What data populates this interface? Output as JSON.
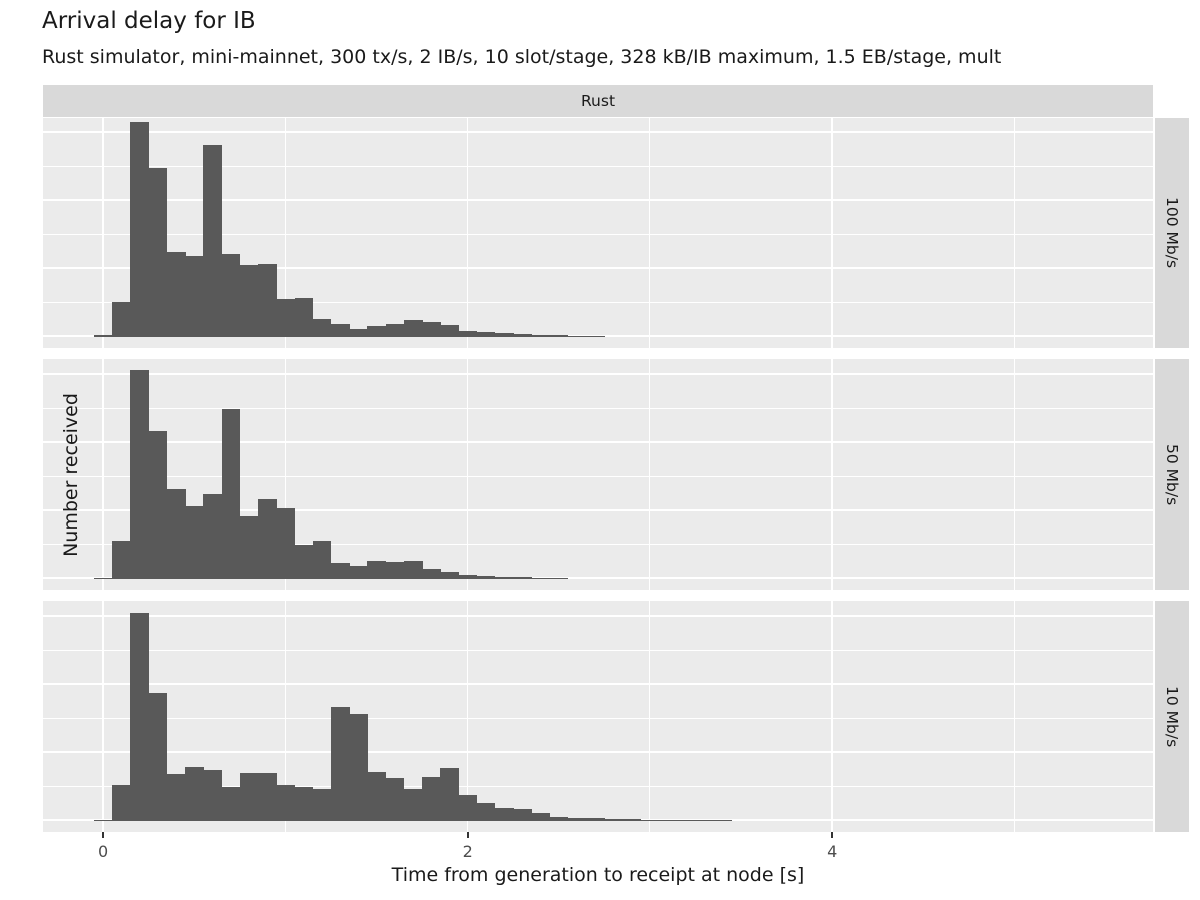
{
  "title": "Arrival delay for IB",
  "subtitle": "Rust simulator, mini-mainnet, 300 tx/s, 2 IB/s, 10 slot/stage, 328 kB/IB maximum, 1.5 EB/stage, mult",
  "facet_column_label": "Rust",
  "x_axis_label": "Time from generation to receipt at node [s]",
  "y_axis_label": "Number received",
  "colors": {
    "bar_fill": "#595959",
    "panel_background": "#ebebeb",
    "strip_background": "#d9d9d9",
    "gridline": "#ffffff",
    "tick_label": "#4d4d4d",
    "text": "#1a1a1a"
  },
  "chart_data": {
    "type": "bar",
    "note": "faceted histograms (ggplot2 style); y axis has no numeric tick labels, heights are relative units; bins are 0.1 s wide centered on listed values",
    "title": "Arrival delay for IB",
    "xlabel": "Time from generation to receipt at node [s]",
    "ylabel": "Number received",
    "facet_column": "Rust",
    "xlim": [
      -0.33,
      5.76
    ],
    "x_major_ticks": [
      0,
      2,
      4
    ],
    "x_tick_labels": [
      "0",
      "2",
      "4"
    ],
    "x_minor_gridlines": [
      1,
      3,
      5
    ],
    "grid": "white major+minor on gray panels",
    "legend_position": "none",
    "bin_width": 0.1,
    "series": [
      {
        "name": "100 Mb/s",
        "bin_centers": [
          0.0,
          0.1,
          0.2,
          0.3,
          0.4,
          0.5,
          0.6,
          0.7,
          0.8,
          0.9,
          1.0,
          1.1,
          1.2,
          1.3,
          1.4,
          1.5,
          1.6,
          1.7,
          1.8,
          1.9,
          2.0,
          2.1,
          2.2,
          2.3,
          2.4,
          2.5,
          2.6,
          2.7
        ],
        "counts_rel": [
          2,
          35,
          215,
          169,
          85,
          81,
          192,
          83,
          72,
          73,
          38,
          39,
          18,
          13,
          8,
          11,
          13,
          17,
          15,
          12,
          6,
          5,
          4,
          3,
          2,
          2,
          1,
          1
        ]
      },
      {
        "name": "50 Mb/s",
        "bin_centers": [
          0.0,
          0.1,
          0.2,
          0.3,
          0.4,
          0.5,
          0.6,
          0.7,
          0.8,
          0.9,
          1.0,
          1.1,
          1.2,
          1.3,
          1.4,
          1.5,
          1.6,
          1.7,
          1.8,
          1.9,
          2.0,
          2.1,
          2.2,
          2.3,
          2.4,
          2.5
        ],
        "counts_rel": [
          1,
          38,
          209,
          148,
          90,
          73,
          85,
          170,
          63,
          80,
          71,
          34,
          38,
          16,
          13,
          18,
          17,
          18,
          10,
          7,
          4,
          3,
          2,
          2,
          1,
          1
        ]
      },
      {
        "name": "10 Mb/s",
        "bin_centers": [
          0.0,
          0.1,
          0.2,
          0.3,
          0.4,
          0.5,
          0.6,
          0.7,
          0.8,
          0.9,
          1.0,
          1.1,
          1.2,
          1.3,
          1.4,
          1.5,
          1.6,
          1.7,
          1.8,
          1.9,
          2.0,
          2.1,
          2.2,
          2.3,
          2.4,
          2.5,
          2.6,
          2.7,
          2.8,
          2.9,
          3.0,
          3.1,
          3.2,
          3.3,
          3.4
        ],
        "counts_rel": [
          1,
          36,
          208,
          128,
          47,
          54,
          51,
          34,
          48,
          48,
          36,
          34,
          32,
          114,
          107,
          49,
          43,
          32,
          44,
          53,
          26,
          18,
          13,
          12,
          8,
          4,
          3,
          3,
          2,
          2,
          1,
          1,
          1,
          1,
          1
        ]
      }
    ]
  }
}
